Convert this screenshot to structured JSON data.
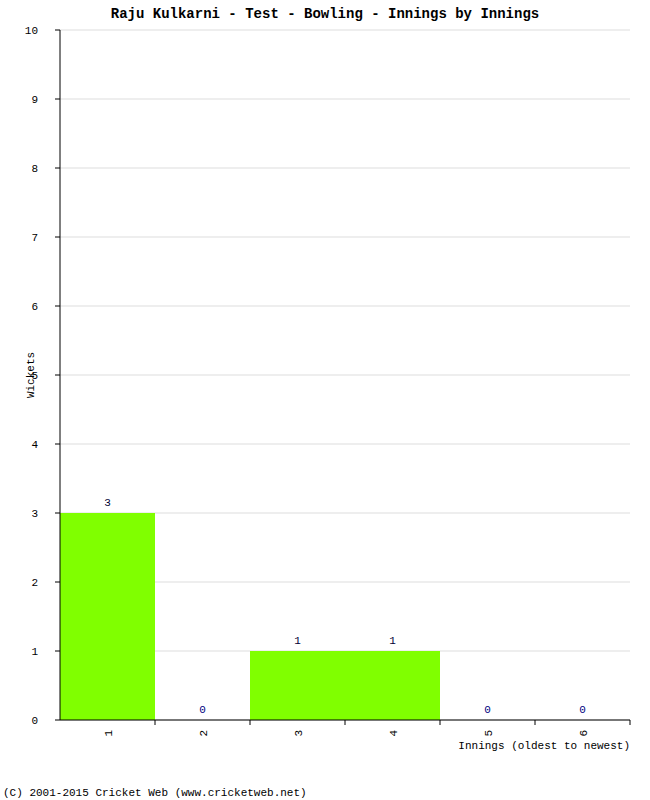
{
  "chart_data": {
    "type": "bar",
    "title": "Raju Kulkarni - Test - Bowling - Innings by Innings",
    "categories": [
      "1",
      "2",
      "3",
      "4",
      "5",
      "6"
    ],
    "values": [
      3,
      0,
      1,
      1,
      0,
      0
    ],
    "color": "#80ff00",
    "x_label": "Innings (oldest to newest)",
    "y_label": "Wickets",
    "annotations": [
      "(C) 2001-2015 Cricket Web (www.cricketweb.net)"
    ],
    "ylim": [
      0,
      10
    ],
    "yticks": [
      0,
      1,
      2,
      3,
      4,
      5,
      6,
      7,
      8,
      9,
      10
    ],
    "grid": true,
    "data_labels": true
  }
}
